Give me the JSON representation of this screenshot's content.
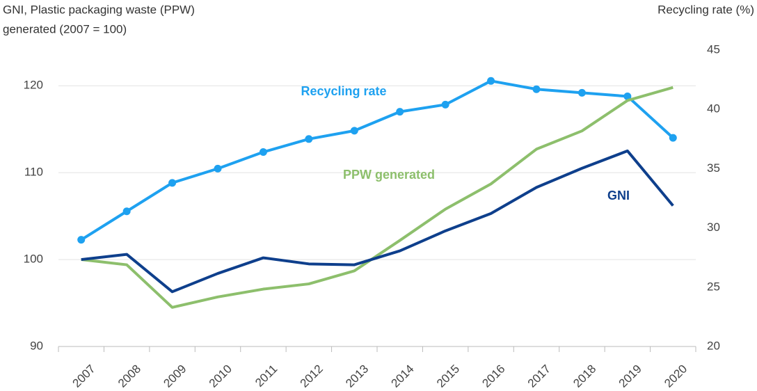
{
  "chart_data": {
    "type": "line",
    "title": [
      "GNI, Plastic packaging waste (PPW)",
      "generated (2007 = 100)"
    ],
    "y2_label": "Recycling rate (%)",
    "categories": [
      "2007",
      "2008",
      "2009",
      "2010",
      "2011",
      "2012",
      "2013",
      "2014",
      "2015",
      "2016",
      "2017",
      "2018",
      "2019",
      "2020"
    ],
    "series": [
      {
        "name": "Recycling rate",
        "color": "#1ea1f0",
        "axis": "y2",
        "markers": true,
        "values": [
          29.0,
          31.4,
          33.8,
          35.0,
          36.4,
          37.5,
          38.2,
          39.8,
          40.4,
          42.4,
          41.7,
          41.4,
          41.1,
          37.6
        ]
      },
      {
        "name": "PPW generated",
        "color": "#8dbf6c",
        "markers": false,
        "values": [
          100,
          99.4,
          94.5,
          95.7,
          96.6,
          97.2,
          98.7,
          102.2,
          105.8,
          108.7,
          112.7,
          114.8,
          118.3,
          119.8
        ]
      },
      {
        "name": "GNI",
        "color": "#0e3f8c",
        "markers": false,
        "values": [
          100,
          100.6,
          96.3,
          98.4,
          100.2,
          99.5,
          99.4,
          101.0,
          103.3,
          105.3,
          108.3,
          110.5,
          112.5,
          106.2
        ]
      }
    ],
    "ylim": [
      90,
      124.1
    ],
    "yticks": [
      90,
      100,
      110,
      120
    ],
    "y2lim": [
      20,
      45
    ],
    "y2ticks": [
      20,
      25,
      30,
      35,
      40,
      45
    ],
    "grid": true
  }
}
